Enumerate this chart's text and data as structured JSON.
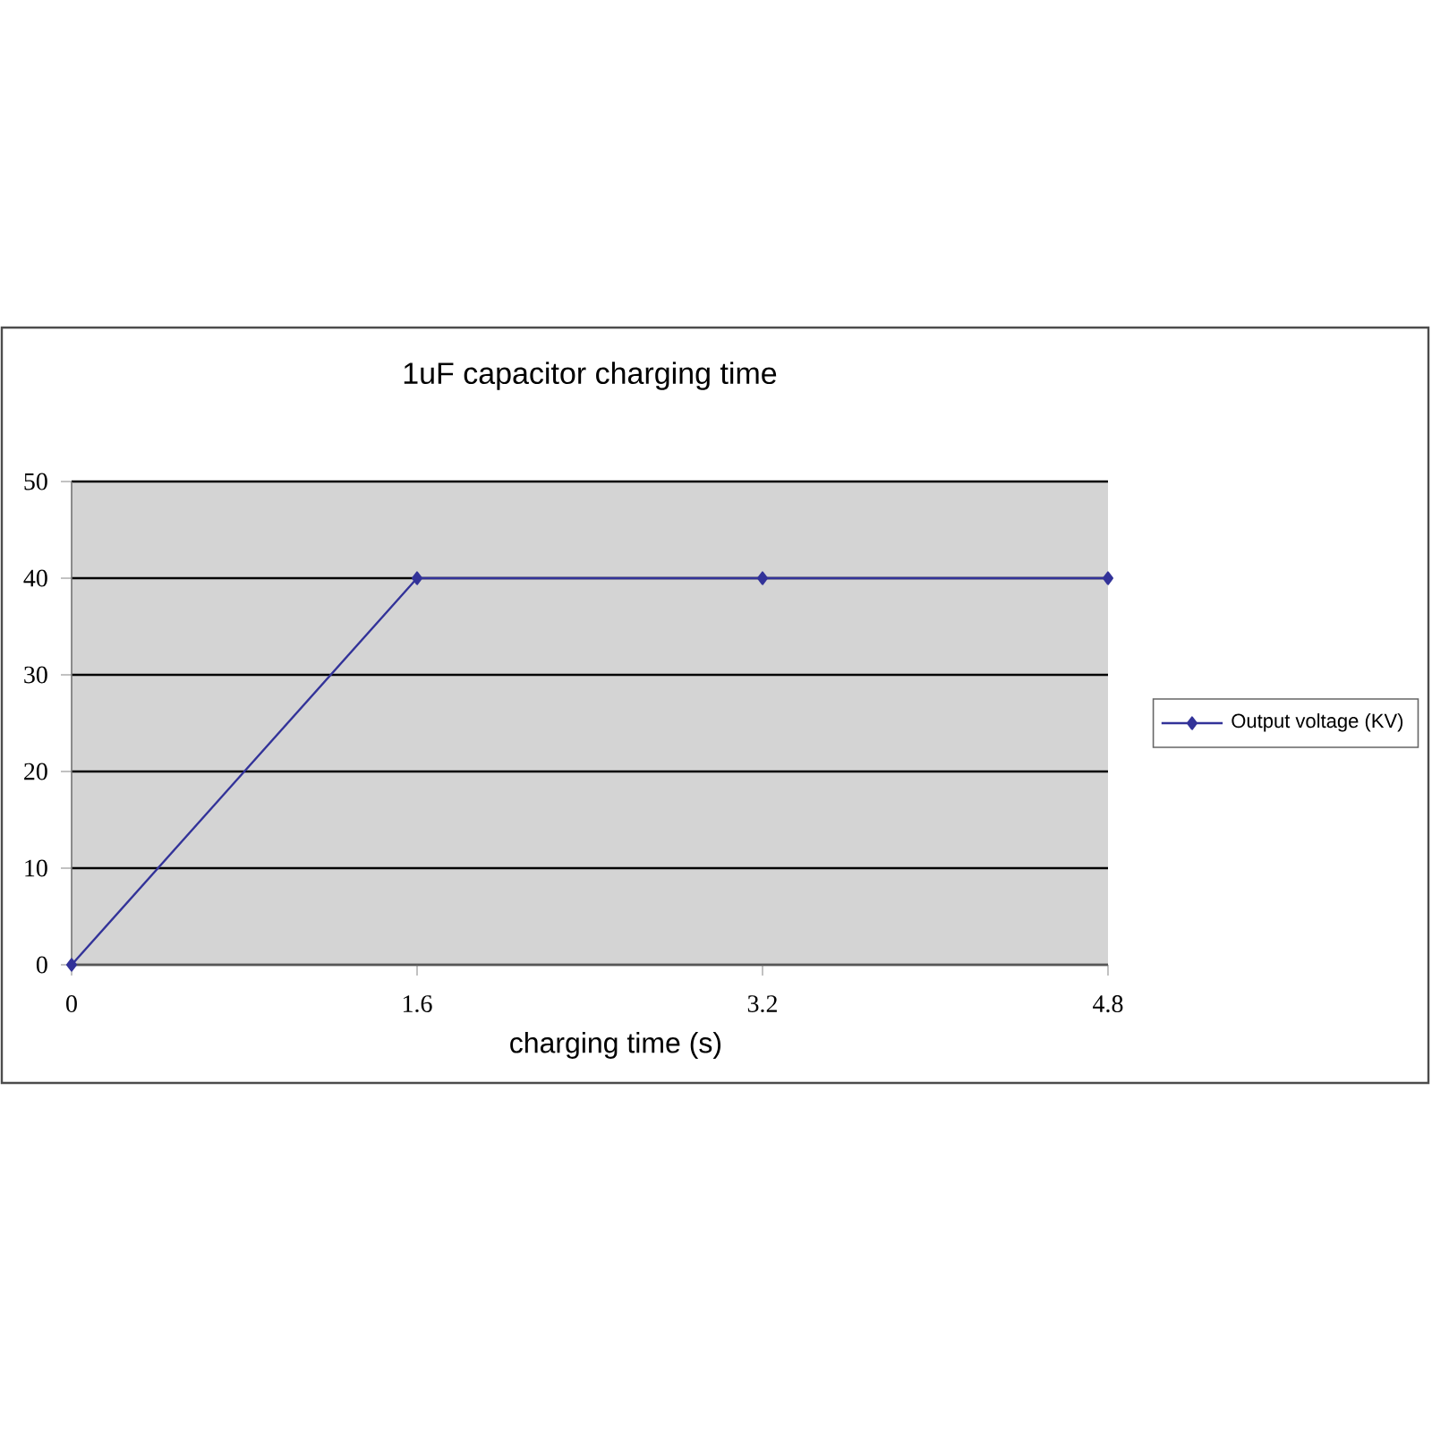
{
  "chart_data": {
    "type": "line",
    "title": "1uF capacitor charging time",
    "xlabel": "charging time (s)",
    "x": [
      0,
      1.6,
      3.2,
      4.8
    ],
    "series": [
      {
        "name": "Output voltage (KV)",
        "color": "#333399",
        "values": [
          0,
          40,
          40,
          40
        ]
      }
    ],
    "xlim": [
      0,
      4.8
    ],
    "xticks": [
      0,
      1.6,
      3.2,
      4.8
    ],
    "ylim": [
      0,
      50
    ],
    "yticks": [
      0,
      10,
      20,
      30,
      40,
      50
    ],
    "grid": "y",
    "legend": "right",
    "marker": "diamond"
  }
}
